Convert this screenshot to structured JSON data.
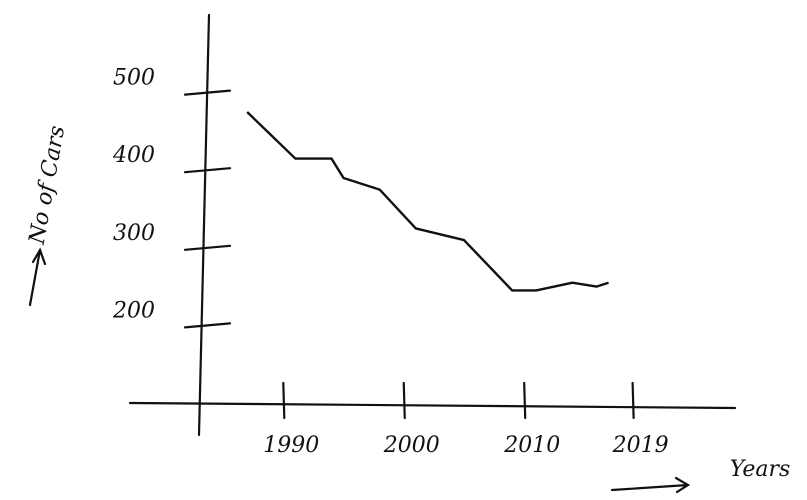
{
  "chart_data": {
    "type": "line",
    "x_label": "Years",
    "y_label": "No of Cars",
    "x": [
      1987,
      1991,
      1994,
      1995,
      1998,
      2001,
      2005,
      2009,
      2011,
      2014,
      2016,
      2017
    ],
    "series": [
      {
        "name": "Cars",
        "color": "#111111",
        "values": [
          475,
          415,
          415,
          390,
          375,
          325,
          310,
          245,
          245,
          255,
          250,
          255
        ]
      }
    ],
    "xlim": [
      1983.5,
      2027.5
    ],
    "xticks": [
      1990,
      2000,
      2010,
      2019
    ],
    "ylim": [
      100,
      600
    ],
    "yticks": [
      200,
      300,
      400,
      500
    ]
  }
}
